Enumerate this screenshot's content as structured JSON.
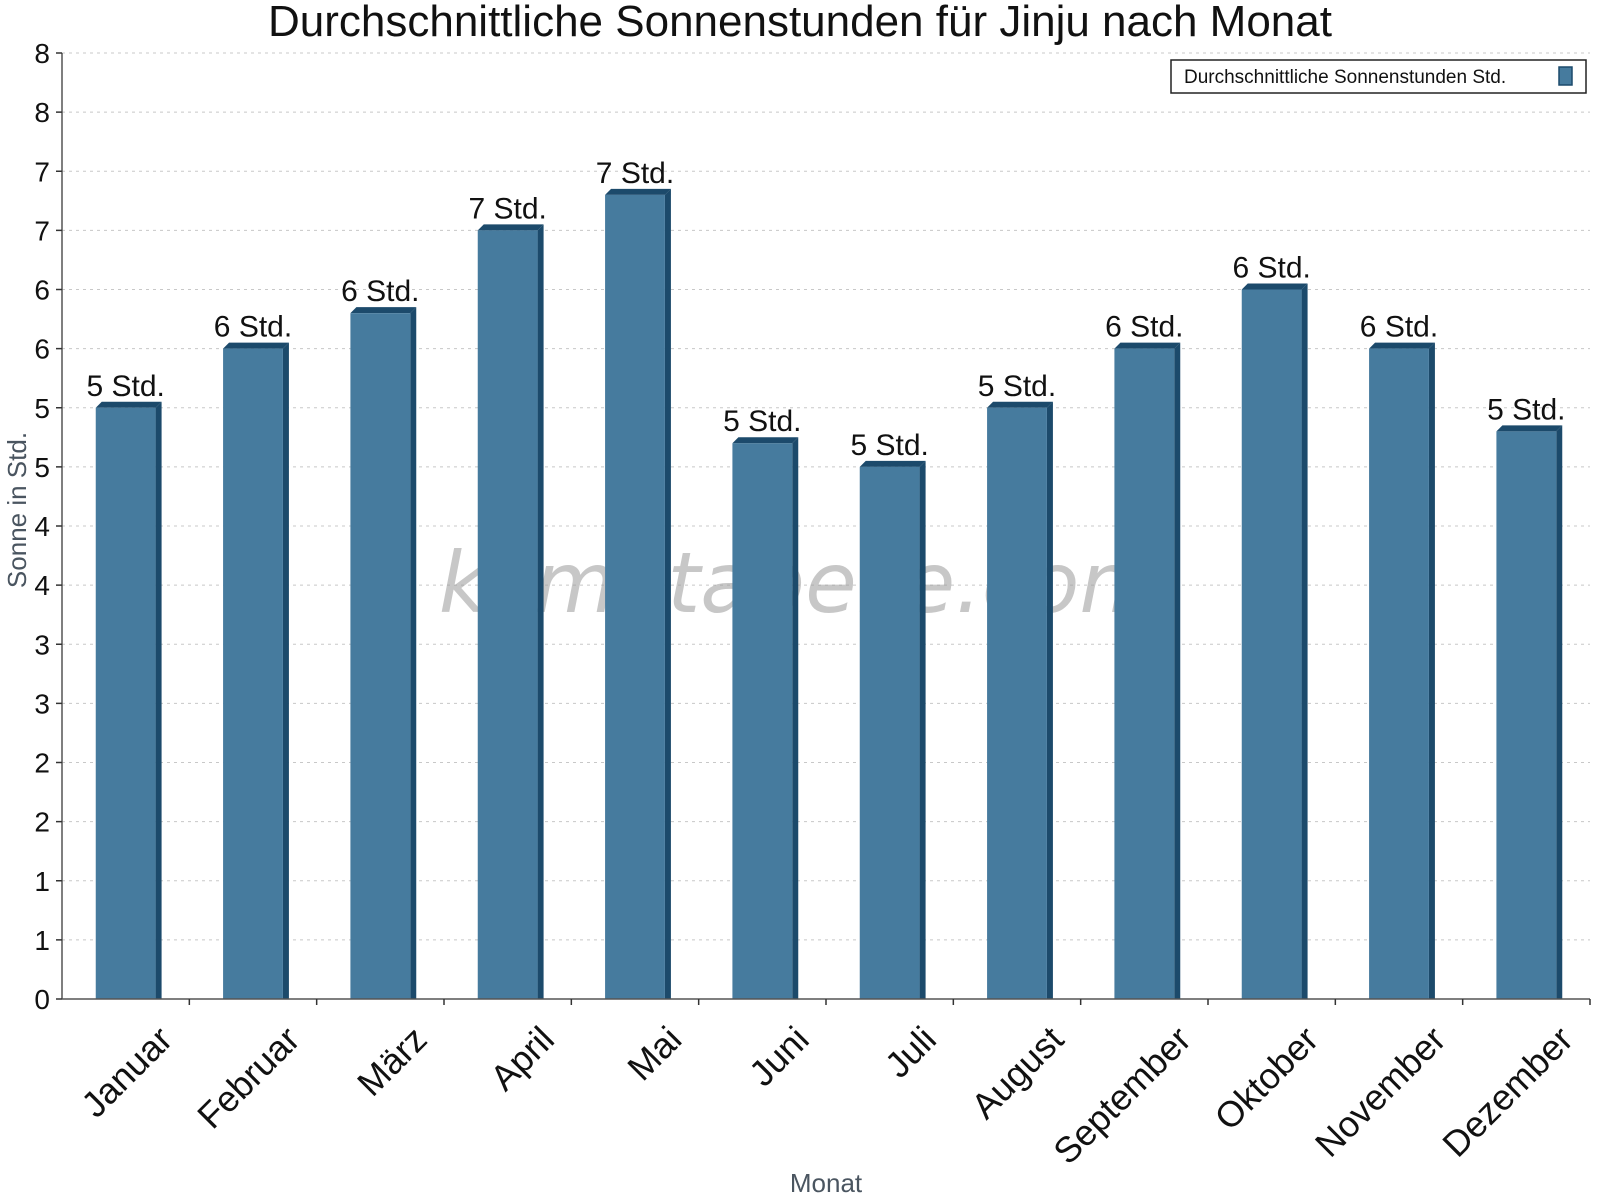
{
  "chart_data": {
    "type": "bar",
    "title": "Durchschnittliche Sonnenstunden für Jinju nach Monat",
    "xlabel": "Monat",
    "ylabel": "Sonne in Std.",
    "categories": [
      "Januar",
      "Februar",
      "März",
      "April",
      "Mai",
      "Juni",
      "Juli",
      "August",
      "September",
      "Oktober",
      "November",
      "Dezember"
    ],
    "series": [
      {
        "name": "Durchschnittliche Sonnenstunden Std.",
        "values": [
          5.0,
          5.5,
          5.8,
          6.5,
          6.8,
          4.7,
          4.5,
          5.0,
          5.5,
          6.0,
          5.5,
          4.8
        ],
        "data_labels": [
          "5 Std.",
          "6 Std.",
          "6 Std.",
          "7 Std.",
          "7 Std.",
          "5 Std.",
          "5 Std.",
          "5 Std.",
          "6 Std.",
          "6 Std.",
          "6 Std.",
          "5 Std."
        ]
      }
    ],
    "ylim": [
      0,
      8
    ],
    "yticks": [
      0,
      0.5,
      1,
      1.5,
      2,
      2.5,
      3,
      3.5,
      4,
      4.5,
      5,
      5.5,
      6,
      6.5,
      7,
      7.5,
      8
    ],
    "ytick_labels": [
      "0",
      "1",
      "1",
      "2",
      "2",
      "3",
      "3",
      "4",
      "4",
      "5",
      "5",
      "6",
      "6",
      "7",
      "7",
      "8",
      "8"
    ],
    "grid": true,
    "legend_position": "top-right",
    "bar_color": "#467b9e",
    "bar_edge_color": "#1c4a6b",
    "watermark": "klimatabelle.com"
  }
}
